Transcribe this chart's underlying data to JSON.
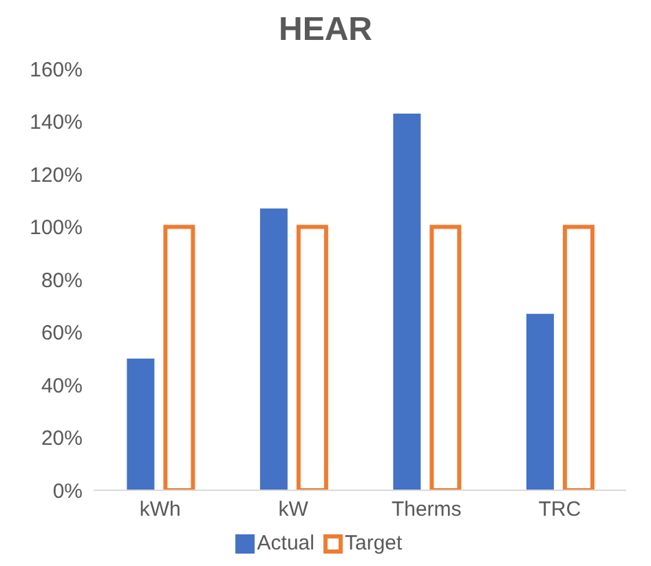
{
  "chart_data": {
    "type": "bar",
    "title": "HEAR",
    "categories": [
      "kWh",
      "kW",
      "Therms",
      "TRC"
    ],
    "series": [
      {
        "name": "Actual",
        "color": "#4472c4",
        "values": [
          50,
          107,
          143,
          67
        ]
      },
      {
        "name": "Target",
        "color": "#ed7d31",
        "values": [
          100,
          100,
          100,
          100
        ]
      }
    ],
    "ylim": [
      0,
      160
    ],
    "yticks": [
      {
        "value": 0,
        "label": "0%"
      },
      {
        "value": 20,
        "label": "20%"
      },
      {
        "value": 40,
        "label": "40%"
      },
      {
        "value": 60,
        "label": "60%"
      },
      {
        "value": 80,
        "label": "80%"
      },
      {
        "value": 100,
        "label": "100%"
      },
      {
        "value": 120,
        "label": "120%"
      },
      {
        "value": 140,
        "label": "140%"
      },
      {
        "value": 160,
        "label": "160%"
      }
    ],
    "grid": false,
    "legend": "bottom"
  }
}
